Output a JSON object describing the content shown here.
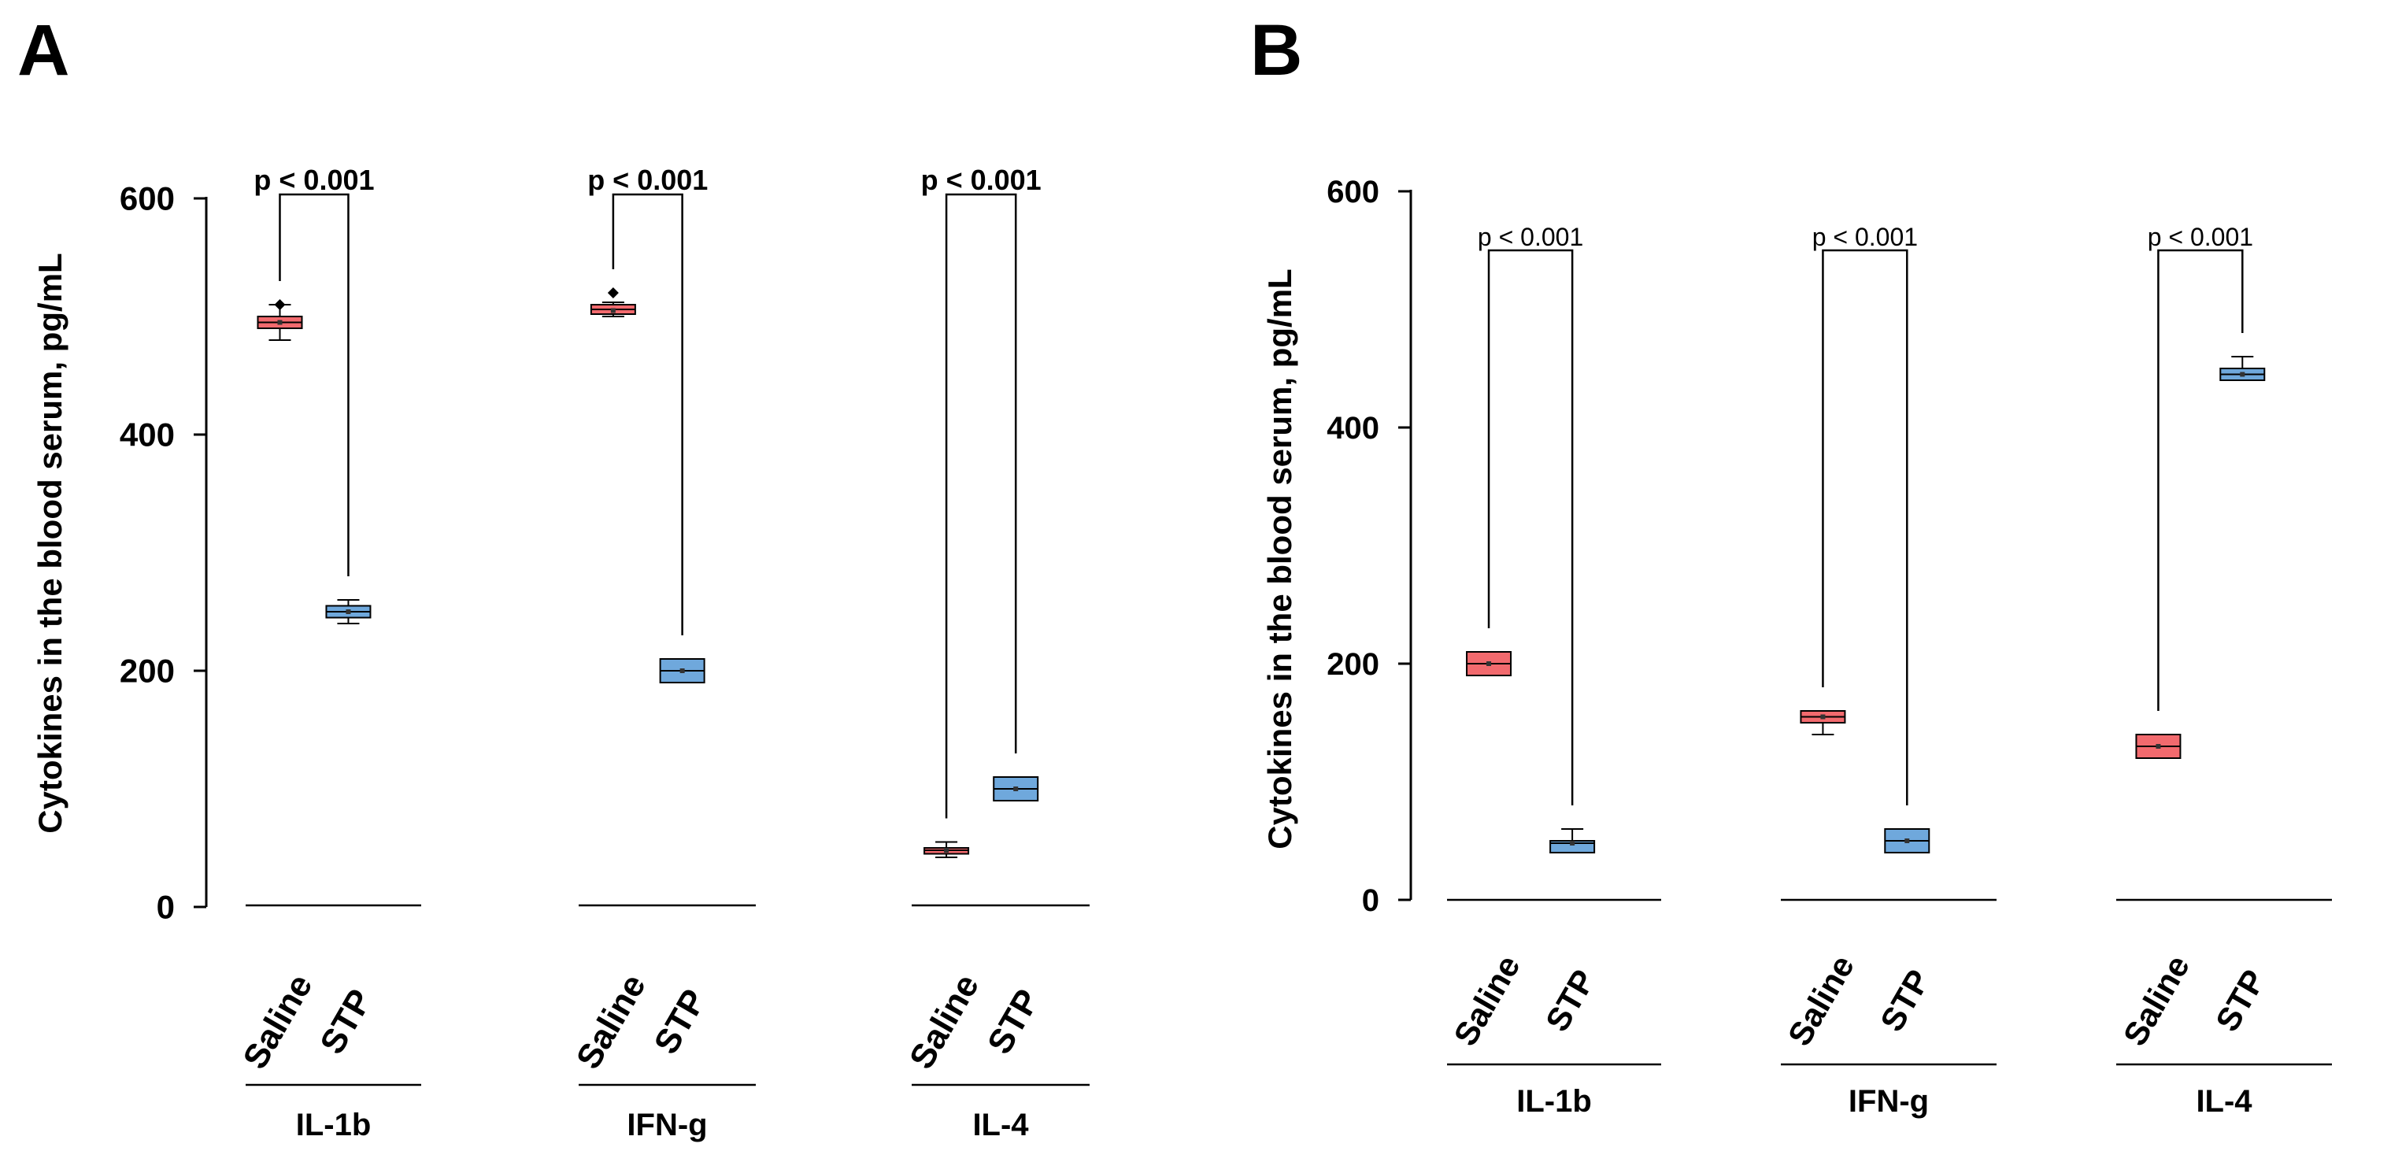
{
  "chart_data": [
    {
      "type": "box",
      "panel_label": "A",
      "title": "",
      "ylabel": "Cytokines in the blood serum, pg/mL",
      "ylim": [
        0,
        600
      ],
      "yticks": [
        "0",
        "200",
        "400",
        "600"
      ],
      "p_label_style": "bold",
      "groups": [
        {
          "name": "IL-1b",
          "p_value": "p < 0.001",
          "boxes": [
            {
              "category": "Saline",
              "color": "#f26a6e",
              "q1": 490,
              "median": 495,
              "q3": 500,
              "whisker_low": 480,
              "whisker_high": 510,
              "mean": 495,
              "outlier": 510
            },
            {
              "category": "STP",
              "color": "#6fa8dc",
              "q1": 245,
              "median": 250,
              "q3": 255,
              "whisker_low": 240,
              "whisker_high": 260,
              "mean": 250,
              "outlier": null
            }
          ]
        },
        {
          "name": "IFN-g",
          "p_value": "p < 0.001",
          "boxes": [
            {
              "category": "Saline",
              "color": "#f26a6e",
              "q1": 502,
              "median": 506,
              "q3": 510,
              "whisker_low": 500,
              "whisker_high": 512,
              "mean": 505,
              "outlier": 520
            },
            {
              "category": "STP",
              "color": "#6fa8dc",
              "q1": 190,
              "median": 200,
              "q3": 210,
              "whisker_low": 190,
              "whisker_high": 210,
              "mean": 200,
              "outlier": null
            }
          ]
        },
        {
          "name": "IL-4",
          "p_value": "p < 0.001",
          "boxes": [
            {
              "category": "Saline",
              "color": "#f26a6e",
              "q1": 45,
              "median": 48,
              "q3": 50,
              "whisker_low": 42,
              "whisker_high": 55,
              "mean": 48,
              "outlier": null
            },
            {
              "category": "STP",
              "color": "#6fa8dc",
              "q1": 90,
              "median": 100,
              "q3": 110,
              "whisker_low": 90,
              "whisker_high": 110,
              "mean": 100,
              "outlier": null
            }
          ]
        }
      ]
    },
    {
      "type": "box",
      "panel_label": "B",
      "title": "",
      "ylabel": "Cytokines in the blood serum, pg/mL",
      "ylim": [
        0,
        600
      ],
      "yticks": [
        "0",
        "200",
        "400",
        "600"
      ],
      "p_label_style": "normal",
      "groups": [
        {
          "name": "IL-1b",
          "p_value": "p < 0.001",
          "boxes": [
            {
              "category": "Saline",
              "color": "#f26a6e",
              "q1": 190,
              "median": 200,
              "q3": 210,
              "whisker_low": 190,
              "whisker_high": 210,
              "mean": 200,
              "outlier": null
            },
            {
              "category": "STP",
              "color": "#6fa8dc",
              "q1": 40,
              "median": 48,
              "q3": 50,
              "whisker_low": 40,
              "whisker_high": 60,
              "mean": 48,
              "outlier": null
            }
          ]
        },
        {
          "name": "IFN-g",
          "p_value": "p < 0.001",
          "boxes": [
            {
              "category": "Saline",
              "color": "#f26a6e",
              "q1": 150,
              "median": 155,
              "q3": 160,
              "whisker_low": 140,
              "whisker_high": 160,
              "mean": 155,
              "outlier": null
            },
            {
              "category": "STP",
              "color": "#6fa8dc",
              "q1": 40,
              "median": 50,
              "q3": 60,
              "whisker_low": 40,
              "whisker_high": 60,
              "mean": 50,
              "outlier": null
            }
          ]
        },
        {
          "name": "IL-4",
          "p_value": "p < 0.001",
          "boxes": [
            {
              "category": "Saline",
              "color": "#f26a6e",
              "q1": 120,
              "median": 130,
              "q3": 140,
              "whisker_low": 120,
              "whisker_high": 140,
              "mean": 130,
              "outlier": null
            },
            {
              "category": "STP",
              "color": "#6fa8dc",
              "q1": 440,
              "median": 445,
              "q3": 450,
              "whisker_low": 440,
              "whisker_high": 460,
              "mean": 445,
              "outlier": null
            }
          ]
        }
      ]
    }
  ]
}
